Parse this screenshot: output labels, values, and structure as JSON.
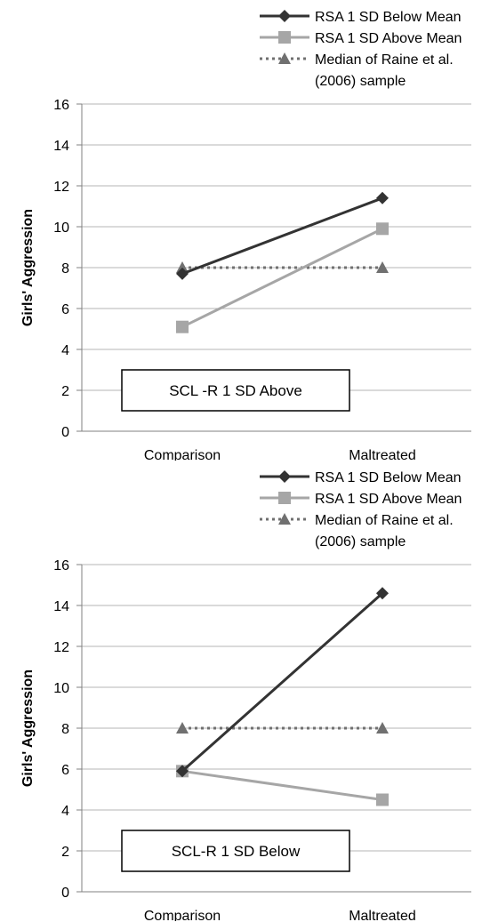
{
  "chart_data": [
    {
      "type": "line",
      "title": "",
      "xlabel": "",
      "ylabel": "Girls' Aggression",
      "ylim": [
        0,
        16
      ],
      "yticks": [
        0,
        2,
        4,
        6,
        8,
        10,
        12,
        14,
        16
      ],
      "categories": [
        "Comparison",
        "Maltreated"
      ],
      "grid": true,
      "legend": "top-right",
      "annotation": "SCL -R 1 SD Above",
      "series": [
        {
          "name": "RSA 1 SD Below Mean",
          "values": [
            7.7,
            11.4
          ],
          "color": "#333333",
          "marker": "diamond",
          "dash": "solid"
        },
        {
          "name": "RSA 1 SD Above Mean",
          "values": [
            5.1,
            9.9
          ],
          "color": "#a6a6a6",
          "marker": "square",
          "dash": "solid"
        },
        {
          "name": "Median of Raine et al. (2006) sample",
          "values": [
            8.0,
            8.0
          ],
          "color": "#707070",
          "marker": "triangle",
          "dash": "dotted"
        }
      ]
    },
    {
      "type": "line",
      "title": "",
      "xlabel": "",
      "ylabel": "Girls' Aggression",
      "ylim": [
        0,
        16
      ],
      "yticks": [
        0,
        2,
        4,
        6,
        8,
        10,
        12,
        14,
        16
      ],
      "categories": [
        "Comparison",
        "Maltreated"
      ],
      "grid": true,
      "legend": "top-right",
      "annotation": "SCL-R 1 SD Below",
      "series": [
        {
          "name": "RSA 1 SD Below Mean",
          "values": [
            5.9,
            14.6
          ],
          "color": "#333333",
          "marker": "diamond",
          "dash": "solid"
        },
        {
          "name": "RSA 1 SD Above Mean",
          "values": [
            5.9,
            4.5
          ],
          "color": "#a6a6a6",
          "marker": "square",
          "dash": "solid"
        },
        {
          "name": "Median of Raine et al. (2006) sample",
          "values": [
            8.0,
            8.0
          ],
          "color": "#707070",
          "marker": "triangle",
          "dash": "dotted"
        }
      ]
    }
  ]
}
